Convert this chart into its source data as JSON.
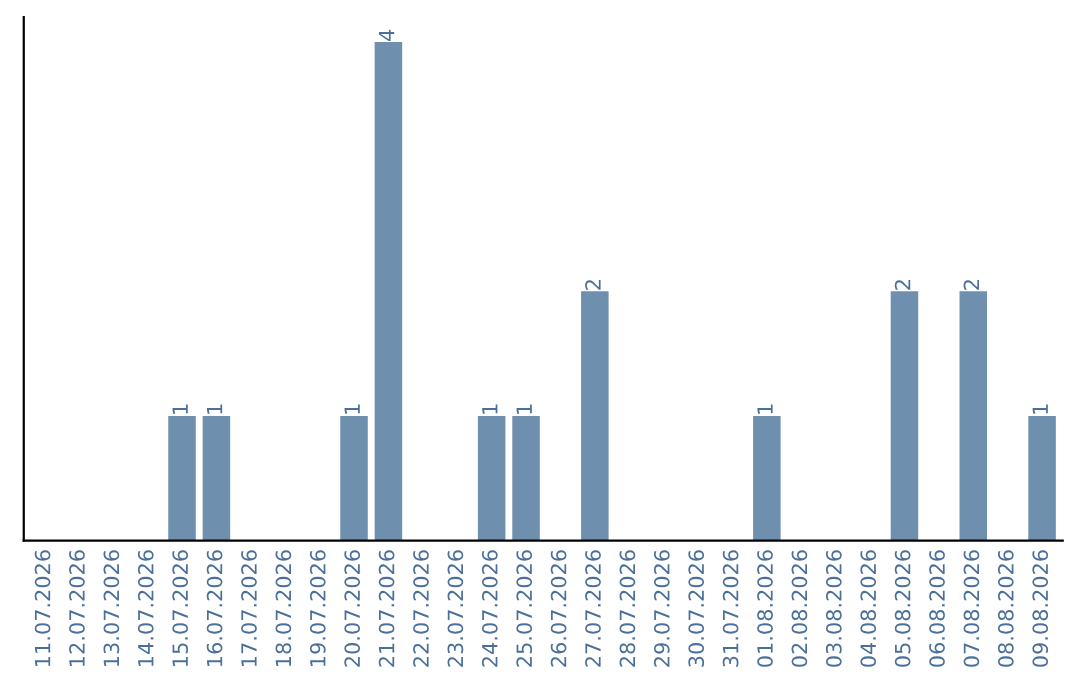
{
  "chart_data": {
    "type": "bar",
    "categories": [
      "11.07.2026",
      "12.07.2026",
      "13.07.2026",
      "14.07.2026",
      "15.07.2026",
      "16.07.2026",
      "17.07.2026",
      "18.07.2026",
      "19.07.2026",
      "20.07.2026",
      "21.07.2026",
      "22.07.2026",
      "23.07.2026",
      "24.07.2026",
      "25.07.2026",
      "26.07.2026",
      "27.07.2026",
      "28.07.2026",
      "29.07.2026",
      "30.07.2026",
      "31.07.2026",
      "01.08.2026",
      "02.08.2026",
      "03.08.2026",
      "04.08.2026",
      "05.08.2026",
      "06.08.2026",
      "07.08.2026",
      "08.08.2026",
      "09.08.2026"
    ],
    "values": [
      0,
      0,
      0,
      0,
      1,
      1,
      0,
      0,
      0,
      1,
      4,
      0,
      0,
      1,
      1,
      0,
      2,
      0,
      0,
      0,
      0,
      1,
      0,
      0,
      0,
      2,
      0,
      2,
      0,
      1
    ],
    "value_labels": [
      null,
      null,
      null,
      null,
      "1",
      "1",
      null,
      null,
      null,
      "1",
      "4",
      null,
      null,
      "1",
      "1",
      null,
      "2",
      null,
      null,
      null,
      null,
      "1",
      null,
      null,
      null,
      "2",
      null,
      "2",
      null,
      "1"
    ],
    "color": "#6f8fae",
    "tick_labels": "x",
    "grid": false,
    "legend": false
  }
}
